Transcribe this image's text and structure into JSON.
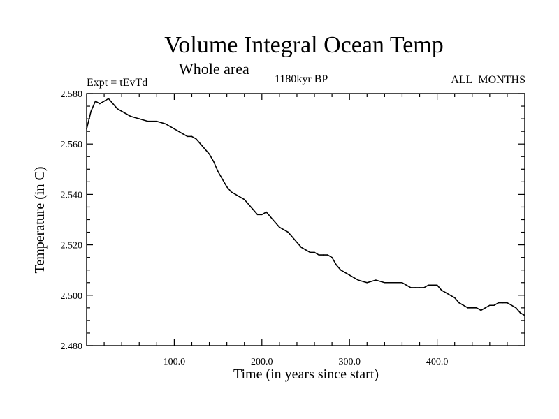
{
  "chart_data": {
    "type": "line",
    "title": "Volume Integral Ocean Temp",
    "subtitle": "Whole area",
    "left_label": "Expt = tEvTd",
    "center_label": "1180kyr BP",
    "right_label": "ALL_MONTHS",
    "xlabel": "Time (in years since start)",
    "ylabel": "Temperature (in C)",
    "xlim": [
      0,
      500
    ],
    "ylim": [
      2.48,
      2.58
    ],
    "x_ticks": [
      100,
      200,
      300,
      400
    ],
    "x_tick_labels": [
      "100.0",
      "200.0",
      "300.0",
      "400.0"
    ],
    "y_ticks": [
      2.48,
      2.5,
      2.52,
      2.54,
      2.56,
      2.58
    ],
    "y_tick_labels": [
      "2.480",
      "2.500",
      "2.520",
      "2.540",
      "2.560",
      "2.580"
    ],
    "grid": false,
    "series": [
      {
        "name": "Volume Integral Ocean Temp",
        "x": [
          0,
          5,
          10,
          15,
          20,
          25,
          30,
          35,
          40,
          45,
          50,
          60,
          70,
          80,
          90,
          95,
          100,
          105,
          110,
          115,
          120,
          125,
          130,
          135,
          140,
          145,
          150,
          155,
          160,
          165,
          170,
          175,
          180,
          185,
          190,
          195,
          200,
          205,
          210,
          215,
          220,
          225,
          230,
          235,
          240,
          245,
          250,
          255,
          260,
          265,
          270,
          275,
          280,
          285,
          290,
          295,
          300,
          305,
          310,
          320,
          330,
          340,
          350,
          360,
          370,
          375,
          380,
          385,
          390,
          395,
          400,
          405,
          410,
          415,
          420,
          425,
          430,
          435,
          440,
          445,
          450,
          455,
          460,
          465,
          470,
          475,
          480,
          485,
          490,
          495,
          500
        ],
        "values": [
          2.566,
          2.573,
          2.577,
          2.576,
          2.577,
          2.578,
          2.576,
          2.574,
          2.573,
          2.572,
          2.571,
          2.57,
          2.569,
          2.569,
          2.568,
          2.567,
          2.566,
          2.565,
          2.564,
          2.563,
          2.563,
          2.562,
          2.56,
          2.558,
          2.556,
          2.553,
          2.549,
          2.546,
          2.543,
          2.541,
          2.54,
          2.539,
          2.538,
          2.536,
          2.534,
          2.532,
          2.532,
          2.533,
          2.531,
          2.529,
          2.527,
          2.526,
          2.525,
          2.523,
          2.521,
          2.519,
          2.518,
          2.517,
          2.517,
          2.516,
          2.516,
          2.516,
          2.515,
          2.512,
          2.51,
          2.509,
          2.508,
          2.507,
          2.506,
          2.505,
          2.506,
          2.505,
          2.505,
          2.505,
          2.503,
          2.503,
          2.503,
          2.503,
          2.504,
          2.504,
          2.504,
          2.502,
          2.501,
          2.5,
          2.499,
          2.497,
          2.496,
          2.495,
          2.495,
          2.495,
          2.494,
          2.495,
          2.496,
          2.496,
          2.497,
          2.497,
          2.497,
          2.496,
          2.495,
          2.493,
          2.492
        ]
      }
    ]
  }
}
